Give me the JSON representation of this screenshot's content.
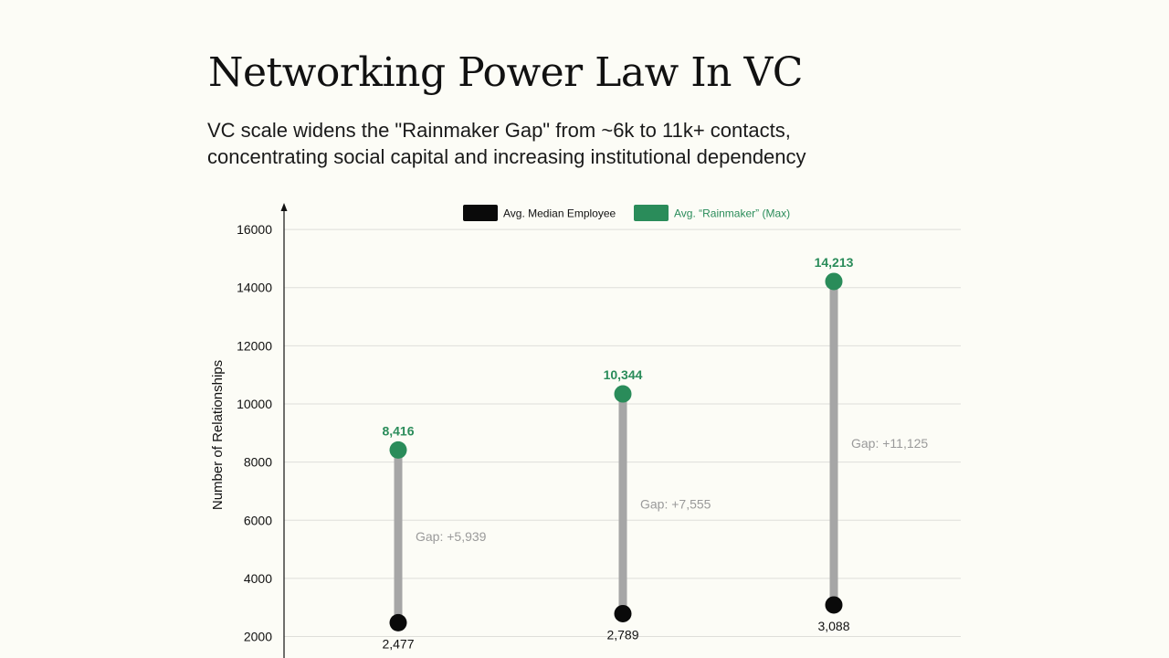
{
  "header": {
    "title": "Networking Power Law In VC",
    "subtitle_line1": "VC scale widens the \"Rainmaker Gap\" from ~6k to 11k+ contacts,",
    "subtitle_line2": "concentrating social capital and increasing institutional dependency"
  },
  "colors": {
    "median": "#0a0a0a",
    "rainmaker": "#2a8c5a",
    "connector": "#a6a6a6",
    "gap_text": "#9a9a9a",
    "grid": "#dededa"
  },
  "chart_data": {
    "type": "dumbbell",
    "ylabel": "Number of Relationships",
    "yticks": [
      2000,
      4000,
      6000,
      8000,
      10000,
      12000,
      14000,
      16000
    ],
    "ylim": [
      1300,
      16800
    ],
    "legend_position": "top-center",
    "legend": {
      "median": "Avg. Median Employee",
      "rainmaker": "Avg. “Rainmaker” (Max)"
    },
    "grid": true,
    "series": [
      {
        "name": "Avg. Median Employee",
        "values": [
          2477,
          2789,
          3088
        ]
      },
      {
        "name": "Avg. “Rainmaker” (Max)",
        "values": [
          8416,
          10344,
          14213
        ]
      }
    ],
    "labels": {
      "median": [
        "2,477",
        "2,789",
        "3,088"
      ],
      "rainmaker": [
        "8,416",
        "10,344",
        "14,213"
      ],
      "gap": [
        "Gap: +5,939",
        "Gap: +7,555",
        "Gap: +11,125"
      ]
    }
  }
}
